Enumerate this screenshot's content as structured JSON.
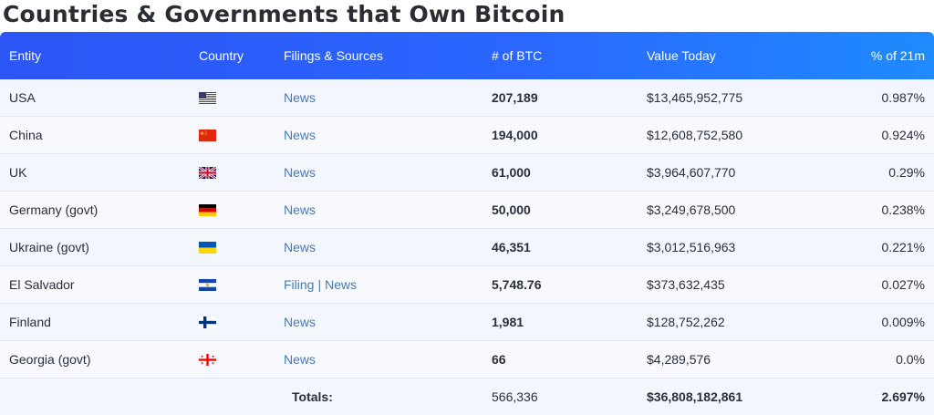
{
  "title": "Countries & Governments that Own Bitcoin",
  "columns": {
    "entity": "Entity",
    "country": "Country",
    "sources": "Filings & Sources",
    "btc": "# of BTC",
    "value": "Value Today",
    "pct": "% of 21m"
  },
  "rows": [
    {
      "entity": "USA",
      "flag": "us-flag-icon",
      "sources": [
        "News"
      ],
      "btc": "207,189",
      "value": "$13,465,952,775",
      "pct": "0.987%"
    },
    {
      "entity": "China",
      "flag": "china-flag-icon",
      "sources": [
        "News"
      ],
      "btc": "194,000",
      "value": "$12,608,752,580",
      "pct": "0.924%"
    },
    {
      "entity": "UK",
      "flag": "uk-flag-icon",
      "sources": [
        "News"
      ],
      "btc": "61,000",
      "value": "$3,964,607,770",
      "pct": "0.29%"
    },
    {
      "entity": "Germany (govt)",
      "flag": "germany-flag-icon",
      "sources": [
        "News"
      ],
      "btc": "50,000",
      "value": "$3,249,678,500",
      "pct": "0.238%"
    },
    {
      "entity": "Ukraine (govt)",
      "flag": "ukraine-flag-icon",
      "sources": [
        "News"
      ],
      "btc": "46,351",
      "value": "$3,012,516,963",
      "pct": "0.221%"
    },
    {
      "entity": "El Salvador",
      "flag": "el-salvador-flag-icon",
      "sources": [
        "Filing",
        "News"
      ],
      "btc": "5,748.76",
      "value": "$373,632,435",
      "pct": "0.027%"
    },
    {
      "entity": "Finland",
      "flag": "finland-flag-icon",
      "sources": [
        "News"
      ],
      "btc": "1,981",
      "value": "$128,752,262",
      "pct": "0.009%"
    },
    {
      "entity": "Georgia (govt)",
      "flag": "georgia-flag-icon",
      "sources": [
        "News"
      ],
      "btc": "66",
      "value": "$4,289,576",
      "pct": "0.0%"
    }
  ],
  "totals": {
    "label": "Totals:",
    "btc": "566,336",
    "value": "$36,808,182,861",
    "pct": "2.697%"
  },
  "colors": {
    "header_start": "#2c55f5",
    "header_end": "#1f8bff",
    "link": "#4a79b3"
  }
}
